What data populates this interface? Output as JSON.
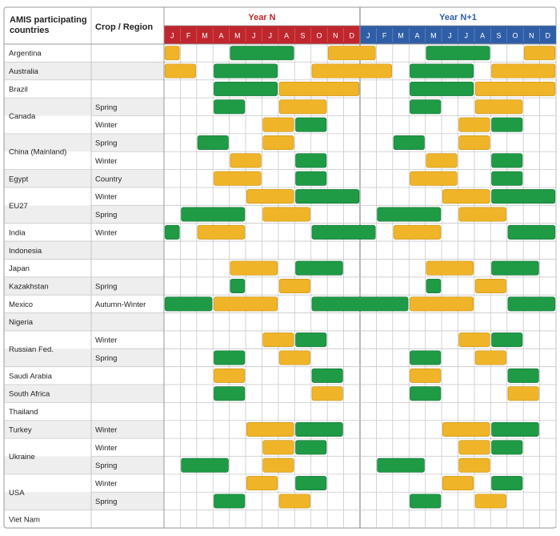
{
  "header": {
    "country_col": "AMIS participating countries",
    "crop_col": "Crop / Region",
    "year_n": "Year N",
    "year_n1": "Year N+1",
    "months": [
      "J",
      "F",
      "M",
      "A",
      "M",
      "J",
      "J",
      "A",
      "S",
      "O",
      "N",
      "D"
    ]
  },
  "colors": {
    "year_n": "#c0262d",
    "year_n1": "#2f5ea7",
    "growing": "#1f9a45",
    "harvest": "#f0b428",
    "row_alt": "#eeeeee",
    "grid": "#c9c9c9"
  },
  "legend_meaning": {
    "g": "green bar",
    "h": "yellow bar"
  },
  "chart_data": {
    "type": "table",
    "note_units": "months, start month index 1-24 (1=Jan Year N, 13=Jan Year N+1), span in months",
    "rows": [
      {
        "country": "Argentina",
        "crop": "",
        "bars": [
          [
            1,
            1,
            "h"
          ],
          [
            5,
            4,
            "g"
          ],
          [
            11,
            3,
            "h"
          ],
          [
            17,
            4,
            "g"
          ],
          [
            23,
            2,
            "h"
          ]
        ]
      },
      {
        "country": "Australia",
        "crop": "",
        "bars": [
          [
            1,
            2,
            "h"
          ],
          [
            4,
            4,
            "g"
          ],
          [
            10,
            5,
            "h"
          ],
          [
            16,
            4,
            "g"
          ],
          [
            21,
            4,
            "h"
          ]
        ]
      },
      {
        "country": "Brazil",
        "crop": "",
        "bars": [
          [
            4,
            4,
            "g"
          ],
          [
            8,
            5,
            "h"
          ],
          [
            16,
            4,
            "g"
          ],
          [
            20,
            5,
            "h"
          ]
        ]
      },
      {
        "country": "Canada",
        "crop": "Spring",
        "bars": [
          [
            4,
            2,
            "g"
          ],
          [
            8,
            3,
            "h"
          ],
          [
            16,
            2,
            "g"
          ],
          [
            20,
            3,
            "h"
          ]
        ]
      },
      {
        "country": "",
        "crop": "Winter",
        "bars": [
          [
            7,
            2,
            "h"
          ],
          [
            9,
            2,
            "g"
          ],
          [
            19,
            2,
            "h"
          ],
          [
            21,
            2,
            "g"
          ]
        ]
      },
      {
        "country": "China (Mainland)",
        "crop": "Spring",
        "bars": [
          [
            3,
            2,
            "g"
          ],
          [
            7,
            2,
            "h"
          ],
          [
            15,
            2,
            "g"
          ],
          [
            19,
            2,
            "h"
          ]
        ]
      },
      {
        "country": "",
        "crop": "Winter",
        "bars": [
          [
            5,
            2,
            "h"
          ],
          [
            9,
            2,
            "g"
          ],
          [
            17,
            2,
            "h"
          ],
          [
            21,
            2,
            "g"
          ]
        ]
      },
      {
        "country": "Egypt",
        "crop": "Country",
        "bars": [
          [
            4,
            3,
            "h"
          ],
          [
            9,
            2,
            "g"
          ],
          [
            16,
            3,
            "h"
          ],
          [
            21,
            2,
            "g"
          ]
        ]
      },
      {
        "country": "EU27",
        "crop": "Winter",
        "bars": [
          [
            6,
            3,
            "h"
          ],
          [
            9,
            4,
            "g"
          ],
          [
            18,
            3,
            "h"
          ],
          [
            21,
            4,
            "g"
          ]
        ]
      },
      {
        "country": "",
        "crop": "Spring",
        "bars": [
          [
            2,
            4,
            "g"
          ],
          [
            7,
            3,
            "h"
          ],
          [
            14,
            4,
            "g"
          ],
          [
            19,
            3,
            "h"
          ]
        ]
      },
      {
        "country": "India",
        "crop": "Winter",
        "bars": [
          [
            1,
            1,
            "g"
          ],
          [
            3,
            3,
            "h"
          ],
          [
            10,
            4,
            "g"
          ],
          [
            15,
            3,
            "h"
          ],
          [
            22,
            3,
            "g"
          ]
        ]
      },
      {
        "country": "Indonesia",
        "crop": "",
        "bars": []
      },
      {
        "country": "Japan",
        "crop": "",
        "bars": [
          [
            5,
            3,
            "h"
          ],
          [
            9,
            3,
            "g"
          ],
          [
            17,
            3,
            "h"
          ],
          [
            21,
            3,
            "g"
          ]
        ]
      },
      {
        "country": "Kazakhstan",
        "crop": "Spring",
        "bars": [
          [
            5,
            1,
            "g"
          ],
          [
            8,
            2,
            "h"
          ],
          [
            17,
            1,
            "g"
          ],
          [
            20,
            2,
            "h"
          ]
        ]
      },
      {
        "country": "Mexico",
        "crop": "Autumn-Winter",
        "bars": [
          [
            1,
            3,
            "g"
          ],
          [
            4,
            4,
            "h"
          ],
          [
            10,
            6,
            "g"
          ],
          [
            16,
            4,
            "h"
          ],
          [
            22,
            3,
            "g"
          ]
        ]
      },
      {
        "country": "Nigeria",
        "crop": "",
        "bars": []
      },
      {
        "country": "Russian Fed.",
        "crop": "Winter",
        "bars": [
          [
            7,
            2,
            "h"
          ],
          [
            9,
            2,
            "g"
          ],
          [
            19,
            2,
            "h"
          ],
          [
            21,
            2,
            "g"
          ]
        ]
      },
      {
        "country": "",
        "crop": "Spring",
        "bars": [
          [
            4,
            2,
            "g"
          ],
          [
            8,
            2,
            "h"
          ],
          [
            16,
            2,
            "g"
          ],
          [
            20,
            2,
            "h"
          ]
        ]
      },
      {
        "country": "Saudi Arabia",
        "crop": "",
        "bars": [
          [
            4,
            2,
            "h"
          ],
          [
            10,
            2,
            "g"
          ],
          [
            16,
            2,
            "h"
          ],
          [
            22,
            2,
            "g"
          ]
        ]
      },
      {
        "country": "South Africa",
        "crop": "",
        "bars": [
          [
            4,
            2,
            "g"
          ],
          [
            10,
            2,
            "h"
          ],
          [
            16,
            2,
            "g"
          ],
          [
            22,
            2,
            "h"
          ]
        ]
      },
      {
        "country": "Thailand",
        "crop": "",
        "bars": []
      },
      {
        "country": "Turkey",
        "crop": "Winter",
        "bars": [
          [
            6,
            3,
            "h"
          ],
          [
            9,
            3,
            "g"
          ],
          [
            18,
            3,
            "h"
          ],
          [
            21,
            3,
            "g"
          ]
        ]
      },
      {
        "country": "Ukraine",
        "crop": "Winter",
        "bars": [
          [
            7,
            2,
            "h"
          ],
          [
            9,
            2,
            "g"
          ],
          [
            19,
            2,
            "h"
          ],
          [
            21,
            2,
            "g"
          ]
        ]
      },
      {
        "country": "",
        "crop": "Spring",
        "bars": [
          [
            2,
            3,
            "g"
          ],
          [
            7,
            2,
            "h"
          ],
          [
            14,
            3,
            "g"
          ],
          [
            19,
            2,
            "h"
          ]
        ]
      },
      {
        "country": "USA",
        "crop": "Winter",
        "bars": [
          [
            6,
            2,
            "h"
          ],
          [
            9,
            2,
            "g"
          ],
          [
            18,
            2,
            "h"
          ],
          [
            21,
            2,
            "g"
          ]
        ]
      },
      {
        "country": "",
        "crop": "Spring",
        "bars": [
          [
            4,
            2,
            "g"
          ],
          [
            8,
            2,
            "h"
          ],
          [
            16,
            2,
            "g"
          ],
          [
            20,
            2,
            "h"
          ]
        ]
      },
      {
        "country": "Viet Nam",
        "crop": "",
        "bars": []
      }
    ]
  }
}
